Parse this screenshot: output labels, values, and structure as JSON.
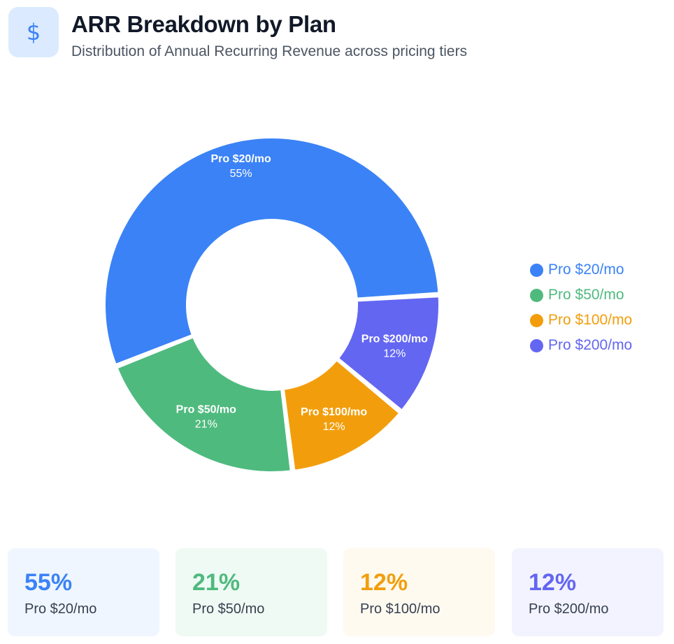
{
  "header": {
    "icon": "dollar-icon",
    "title": "ARR Breakdown by Plan",
    "subtitle": "Distribution of Annual Recurring Revenue across pricing tiers"
  },
  "chart_data": {
    "type": "pie",
    "donut": true,
    "categories": [
      "Pro $20/mo",
      "Pro $50/mo",
      "Pro $100/mo",
      "Pro $200/mo"
    ],
    "values": [
      55,
      21,
      12,
      12
    ],
    "unit": "%",
    "slice_labels": [
      "55%",
      "21%",
      "12%",
      "12%"
    ],
    "colors": [
      "#3b82f6",
      "#4fba7e",
      "#f29e0c",
      "#6366f1"
    ],
    "legend": {
      "position": "right",
      "entries": [
        "Pro $20/mo",
        "Pro $50/mo",
        "Pro $100/mo",
        "Pro $200/mo"
      ]
    }
  },
  "cards": [
    {
      "value": "55%",
      "label": "Pro $20/mo",
      "color": "#3b82f6",
      "bg": "#eff6ff"
    },
    {
      "value": "21%",
      "label": "Pro $50/mo",
      "color": "#4fba7e",
      "bg": "#f0faf4"
    },
    {
      "value": "12%",
      "label": "Pro $100/mo",
      "color": "#f29e0c",
      "bg": "#fffaf0"
    },
    {
      "value": "12%",
      "label": "Pro $200/mo",
      "color": "#6366f1",
      "bg": "#f3f3ff"
    }
  ]
}
